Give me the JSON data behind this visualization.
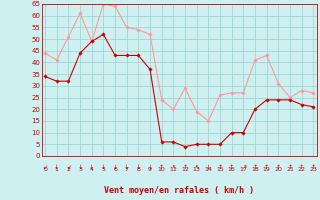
{
  "x": [
    0,
    1,
    2,
    3,
    4,
    5,
    6,
    7,
    8,
    9,
    10,
    11,
    12,
    13,
    14,
    15,
    16,
    17,
    18,
    19,
    20,
    21,
    22,
    23
  ],
  "wind_mean": [
    34,
    32,
    32,
    44,
    49,
    52,
    43,
    43,
    43,
    37,
    6,
    6,
    4,
    5,
    5,
    5,
    10,
    10,
    20,
    24,
    24,
    24,
    22,
    21
  ],
  "wind_gust": [
    44,
    41,
    51,
    61,
    49,
    65,
    64,
    55,
    54,
    52,
    24,
    20,
    29,
    19,
    15,
    26,
    27,
    27,
    41,
    43,
    31,
    25,
    28,
    27
  ],
  "bg_color": "#cff0f0",
  "grid_color": "#a0d8d8",
  "mean_color": "#cc0000",
  "gust_color": "#ff9999",
  "xlabel": "Vent moyen/en rafales ( km/h )",
  "xlabel_color": "#cc0000",
  "tick_color": "#cc0000",
  "ylim": [
    0,
    65
  ],
  "yticks": [
    0,
    5,
    10,
    15,
    20,
    25,
    30,
    35,
    40,
    45,
    50,
    55,
    60,
    65
  ],
  "xticks": [
    0,
    1,
    2,
    3,
    4,
    5,
    6,
    7,
    8,
    9,
    10,
    11,
    12,
    13,
    14,
    15,
    16,
    17,
    18,
    19,
    20,
    21,
    22,
    23
  ],
  "arrow_symbols": [
    "↙",
    "↓",
    "↙",
    "↓",
    "↓",
    "↓",
    "↓",
    "↓",
    "↓",
    "↓",
    "↑",
    "↖",
    "↑",
    "↖",
    "↓",
    "↑",
    "↑",
    "↗",
    "↑",
    "↑",
    "↑",
    "↑",
    "↑",
    "↑"
  ]
}
